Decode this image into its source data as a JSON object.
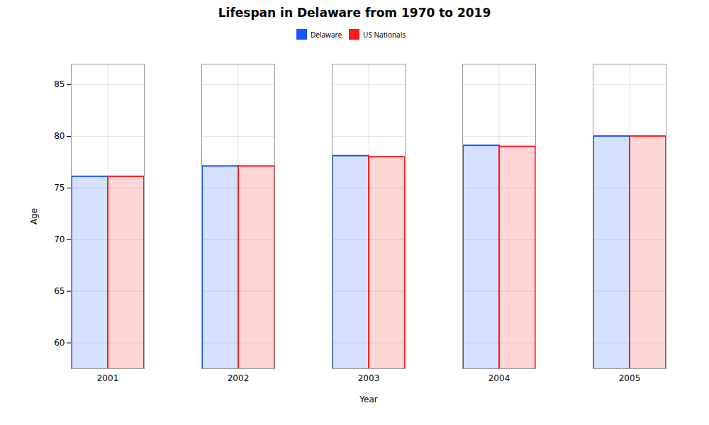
{
  "chart_data": {
    "type": "bar",
    "title": "Lifespan in Delaware from 1970 to 2019",
    "xlabel": "Year",
    "ylabel": "Age",
    "categories": [
      "2001",
      "2002",
      "2003",
      "2004",
      "2005"
    ],
    "series": [
      {
        "name": "Delaware",
        "color": "#1a56ff",
        "values": [
          76.1,
          77.1,
          78.1,
          79.1,
          80.0
        ]
      },
      {
        "name": "US Nationals",
        "color": "#ff1a1a",
        "values": [
          76.1,
          77.1,
          78.0,
          79.0,
          80.0
        ]
      }
    ],
    "ylim": [
      57.5,
      87
    ],
    "yticks": [
      60,
      65,
      70,
      75,
      80,
      85
    ],
    "grid": true,
    "legend": "top"
  }
}
